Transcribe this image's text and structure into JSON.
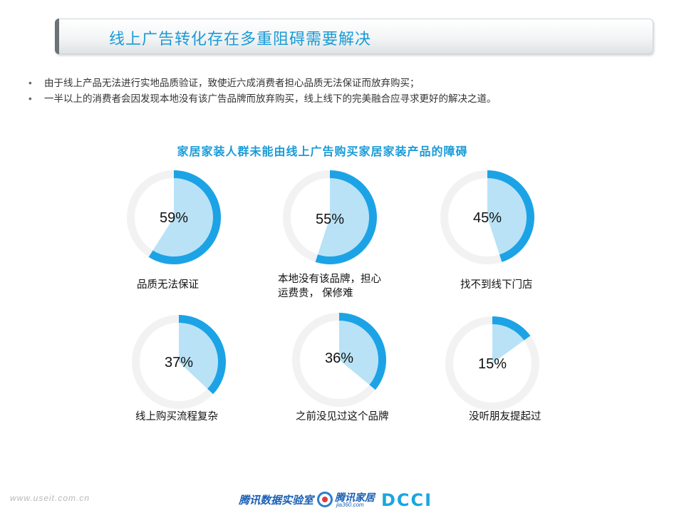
{
  "header": {
    "title": "线上广告转化存在多重阻碍需要解决"
  },
  "bullets": [
    "由于线上产品无法进行实地品质验证，致使近六成消费者担心品质无法保证而放弃购买；",
    "一半以上的消费者会因发现本地没有该广告品牌而放弃购买，线上线下的完美融合应寻求更好的解决之道。"
  ],
  "chart_title": "家居家装人群未能由线上广告购买家居家装产品的障碍",
  "chart_data": {
    "type": "pie",
    "title": "家居家装人群未能由线上广告购买家居家装产品的障碍",
    "unit": "%",
    "categories": [
      "品质无法保证",
      "本地没有该品牌，担心运费贵， 保修难",
      "找不到线下门店",
      "线上购买流程复杂",
      "之前没见过这个品牌",
      "没听朋友提起过"
    ],
    "values": [
      59,
      55,
      45,
      37,
      36,
      15
    ],
    "labels": [
      "59%",
      "55%",
      "45%",
      "37%",
      "36%",
      "15%"
    ],
    "captions": [
      [
        "品质无法保证"
      ],
      [
        "本地没有该品牌，担心",
        "运费贵，  保修难"
      ],
      [
        "找不到线下门店"
      ],
      [
        "线上购买流程复杂"
      ],
      [
        "之前没见过这个品牌"
      ],
      [
        "没听朋友提起过"
      ]
    ],
    "colors": {
      "fill": "#b9e2f6",
      "arc": "#1ca3e6",
      "ring": "#f2f2f2",
      "center": "#ffffff"
    }
  },
  "footer": {
    "url": "www.useit.com.cn",
    "logo_tencent": "腾讯数据实验室",
    "logo_jiaju": "腾讯家居",
    "logo_jiaju_sub": "jia360.com",
    "logo_dcci": "DCCI"
  }
}
